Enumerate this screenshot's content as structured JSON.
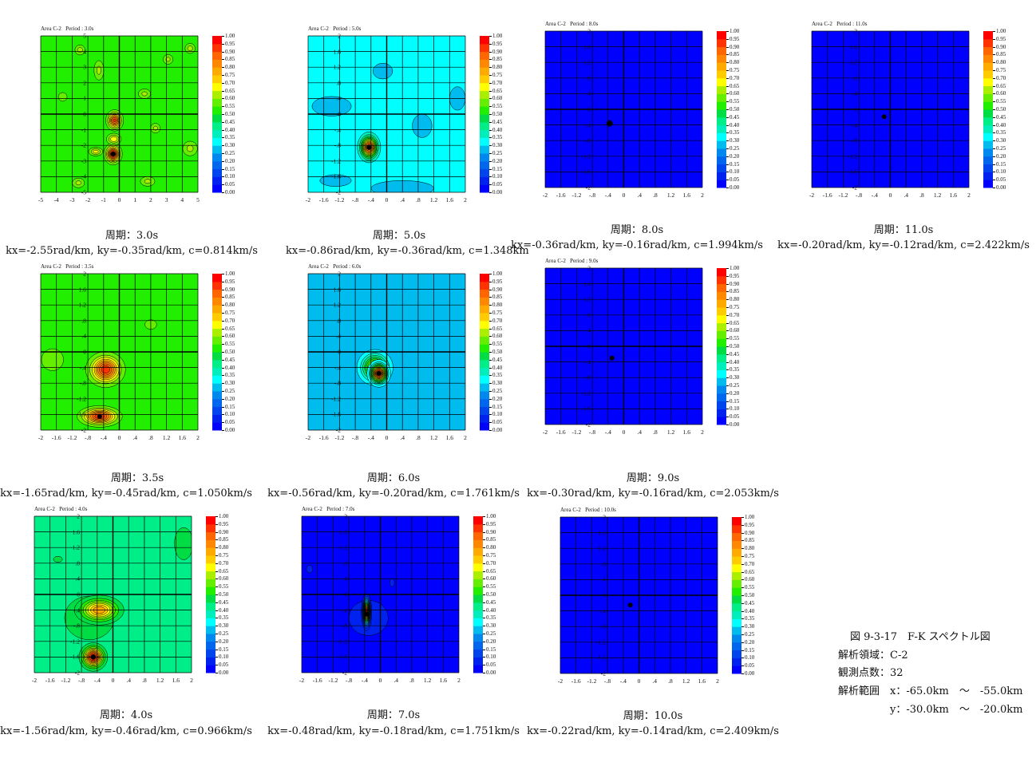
{
  "colormap": [
    "#0000ff",
    "#0022ee",
    "#0044ee",
    "#0066ee",
    "#0088ee",
    "#00bbee",
    "#00ffff",
    "#00eebb",
    "#00ee88",
    "#00dd44",
    "#22ee00",
    "#66ee00",
    "#aaee00",
    "#ffff00",
    "#ffcc00",
    "#ffaa00",
    "#ff8800",
    "#ff6600",
    "#ff3300",
    "#ff0000"
  ],
  "colorbar_labels": [
    "1.00",
    "0.95",
    "0.90",
    "0.85",
    "0.80",
    "0.75",
    "0.70",
    "0.65",
    "0.60",
    "0.55",
    "0.50",
    "0.45",
    "0.40",
    "0.35",
    "0.30",
    "0.25",
    "0.20",
    "0.15",
    "0.10",
    "0.05",
    "0.00"
  ],
  "ticks_small": [
    "2",
    "1.6",
    "1.2",
    ".8",
    ".4",
    "0",
    "-.4",
    "-.8",
    "-1.2",
    "-1.6",
    "-2"
  ],
  "ticks_small_x": [
    "-2",
    "-1.6",
    "-1.2",
    "-.8",
    "-.4",
    "0",
    ".4",
    ".8",
    "1.2",
    "1.6",
    "2"
  ],
  "ticks_large": [
    "5",
    "4",
    "3",
    "2",
    "1",
    "0",
    "-1",
    "-2",
    "-3",
    "-4",
    "-5"
  ],
  "ticks_large_x": [
    "-5",
    "-4",
    "-3",
    "-2",
    "-1",
    "0",
    "1",
    "2",
    "3",
    "4",
    "5"
  ],
  "chart_data": [
    {
      "type": "heatmap",
      "title": "Area C-2   Period : 3.0s",
      "period": "周期：3.0s",
      "result": "kx=-2.55rad/km, ky=-0.35rad/km, c=0.814km/s",
      "range": 5,
      "bg": 0.52,
      "peaks": [
        {
          "kx": -0.3,
          "ky": -0.4,
          "amp": 0.92,
          "sx": 0.25,
          "sy": 0.3
        },
        {
          "kx": -0.4,
          "ky": -2.55,
          "amp": 1.0,
          "sx": 0.25,
          "sy": 0.3
        },
        {
          "kx": -0.35,
          "ky": -1.6,
          "amp": 0.7,
          "sx": 0.25,
          "sy": 0.2
        },
        {
          "kx": -1.5,
          "ky": -2.4,
          "amp": 0.68,
          "sx": 0.25,
          "sy": 0.15
        },
        {
          "kx": 2.3,
          "ky": -0.9,
          "amp": 0.62,
          "sx": 0.2,
          "sy": 0.2
        },
        {
          "kx": -2.5,
          "ky": 4.1,
          "amp": 0.63,
          "sx": 0.2,
          "sy": 0.2
        },
        {
          "kx": -1.3,
          "ky": 2.8,
          "amp": 0.62,
          "sx": 0.2,
          "sy": 0.4
        },
        {
          "kx": 1.6,
          "ky": 1.3,
          "amp": 0.62,
          "sx": 0.25,
          "sy": 0.2
        },
        {
          "kx": 4.5,
          "ky": -2.2,
          "amp": 0.62,
          "sx": 0.3,
          "sy": 0.3
        },
        {
          "kx": 3.1,
          "ky": 3.5,
          "amp": 0.62,
          "sx": 0.2,
          "sy": 0.2
        },
        {
          "kx": -3.6,
          "ky": 1.1,
          "amp": 0.6,
          "sx": 0.2,
          "sy": 0.2
        },
        {
          "kx": -2.6,
          "ky": -4.4,
          "amp": 0.62,
          "sx": 0.25,
          "sy": 0.2
        },
        {
          "kx": 4.5,
          "ky": 4.2,
          "amp": 0.63,
          "sx": 0.2,
          "sy": 0.2
        },
        {
          "kx": 1.8,
          "ky": -4.3,
          "amp": 0.62,
          "sx": 0.3,
          "sy": 0.2
        }
      ],
      "patches": [],
      "dot": [
        -0.4,
        -2.55
      ]
    },
    {
      "type": "heatmap",
      "title": "Area C-2   Period : 5.0s",
      "period": "周期：5.0s",
      "result": "kx=-0.86rad/km, ky=-0.36rad/km, c=1.348km",
      "range": 2,
      "bg": 0.32,
      "clip": true,
      "peaks": [
        {
          "kx": -0.45,
          "ky": -0.85,
          "amp": 0.95,
          "sx": 0.12,
          "sy": 0.16
        }
      ],
      "patches": [
        {
          "kx": -1.4,
          "ky": 0.2,
          "rx": 0.5,
          "ry": 0.25,
          "level": 0.27
        },
        {
          "kx": 0.9,
          "ky": -0.3,
          "rx": 0.25,
          "ry": 0.3,
          "level": 0.27
        },
        {
          "kx": 1.8,
          "ky": 0.4,
          "rx": 0.2,
          "ry": 0.3,
          "level": 0.27
        },
        {
          "kx": -0.1,
          "ky": 1.1,
          "rx": 0.25,
          "ry": 0.2,
          "level": 0.27
        },
        {
          "kx": 0.4,
          "ky": -1.9,
          "rx": 0.8,
          "ry": 0.2,
          "level": 0.27
        },
        {
          "kx": -1.3,
          "ky": -1.7,
          "rx": 0.4,
          "ry": 0.15,
          "level": 0.27
        }
      ],
      "dot": [
        -0.45,
        -0.85
      ]
    },
    {
      "type": "heatmap",
      "title": "Area C-2   Period : 8.0s",
      "period": "周期：8.0s",
      "result": "kx=-0.36rad/km, ky=-0.16rad/km, c=1.994km/s",
      "range": 2,
      "bg": 0.02,
      "peaks": [
        {
          "kx": -0.36,
          "ky": -0.36,
          "amp": 1.0,
          "sx": 0.03,
          "sy": 0.03
        }
      ],
      "patches": [],
      "dot": [
        -0.36,
        -0.36
      ]
    },
    {
      "type": "heatmap",
      "title": "Area C-2   Period : 11.0s",
      "period": "周期：11.0s",
      "result": "kx=-0.20rad/km, ky=-0.12rad/km, c=2.422km/s",
      "range": 2,
      "bg": 0.02,
      "peaks": [],
      "patches": [],
      "dot": [
        -0.16,
        -0.19
      ]
    },
    {
      "type": "heatmap",
      "title": "Area C-2   Period : 3.5s",
      "period": "周期：3.5s",
      "result": "kx=-1.65rad/km, ky=-0.45rad/km, c=1.050km/s",
      "range": 2,
      "bg": 0.52,
      "peaks": [
        {
          "kx": -0.35,
          "ky": -0.45,
          "amp": 0.95,
          "sx": 0.22,
          "sy": 0.2
        },
        {
          "kx": -0.5,
          "ky": -1.65,
          "amp": 0.95,
          "sx": 0.25,
          "sy": 0.12
        },
        {
          "kx": -1.7,
          "ky": -0.2,
          "amp": 0.6,
          "sx": 0.2,
          "sy": 0.2
        },
        {
          "kx": 0.8,
          "ky": 0.7,
          "amp": 0.57,
          "sx": 0.15,
          "sy": 0.12
        }
      ],
      "patches": [],
      "dot": [
        -0.5,
        -1.65
      ]
    },
    {
      "type": "heatmap",
      "title": "Area C-2   Period : 6.0s",
      "period": "周期：6.0s",
      "result": "kx=-0.56rad/km, ky=-0.20rad/km, c=1.761km/s",
      "range": 2,
      "bg": 0.27,
      "clip": true,
      "peaks": [
        {
          "kx": -0.3,
          "ky": -0.4,
          "amp": 0.7,
          "sx": 0.2,
          "sy": 0.2
        },
        {
          "kx": -0.2,
          "ky": -0.55,
          "amp": 1.0,
          "sx": 0.12,
          "sy": 0.14
        }
      ],
      "patches": [],
      "dot": [
        -0.2,
        -0.55
      ]
    },
    {
      "type": "heatmap",
      "title": "Area C-2   Period : 9.0s",
      "period": "周期：9.0s",
      "result": "kx=-0.30rad/km, ky=-0.16rad/km, c=2.053km/s",
      "range": 2,
      "bg": 0.02,
      "peaks": [],
      "patches": [],
      "dot": [
        -0.3,
        -0.3
      ]
    },
    {
      "type": "heatmap",
      "title": "Area C-2   Period : 4.0s",
      "period": "周期：4.0s",
      "result": "kx=-1.56rad/km, ky=-0.46rad/km, c=0.966km/s",
      "range": 2,
      "bg": 0.42,
      "peaks": [
        {
          "kx": -0.6,
          "ky": -0.6,
          "amp": 0.5,
          "sx": 0.45,
          "sy": 0.4
        },
        {
          "kx": -0.35,
          "ky": -0.4,
          "amp": 0.8,
          "sx": 0.28,
          "sy": 0.17
        },
        {
          "kx": -0.5,
          "ky": -1.6,
          "amp": 1.0,
          "sx": 0.15,
          "sy": 0.15
        },
        {
          "kx": 1.8,
          "ky": 1.3,
          "amp": 0.48,
          "sx": 0.2,
          "sy": 0.35
        },
        {
          "kx": -1.4,
          "ky": 0.9,
          "amp": 0.46,
          "sx": 0.15,
          "sy": 0.1
        }
      ],
      "patches": [],
      "dot": [
        -0.5,
        -1.6
      ]
    },
    {
      "type": "heatmap",
      "title": "Area C-2   Period : 7.0s",
      "period": "周期：7.0s",
      "result": "kx=-0.48rad/km, ky=-0.18rad/km, c=1.751km/s",
      "range": 2,
      "bg": 0.02,
      "peaks": [
        {
          "kx": -0.35,
          "ky": -0.45,
          "amp": 1.0,
          "sx": 0.05,
          "sy": 0.18
        }
      ],
      "patches": [
        {
          "kx": -0.3,
          "ky": -0.6,
          "rx": 0.5,
          "ry": 0.45,
          "level": 0.07
        },
        {
          "kx": -1.8,
          "ky": 0.65,
          "rx": 0.08,
          "ry": 0.1,
          "level": 0.07
        },
        {
          "kx": 0.3,
          "ky": 0.3,
          "rx": 0.06,
          "ry": 0.1,
          "level": 0.07
        }
      ],
      "dot": [
        -0.35,
        -0.5
      ]
    },
    {
      "type": "heatmap",
      "title": "Area C-2   Period : 10.0s",
      "period": "周期：10.0s",
      "result": "kx=-0.22rad/km, ky=-0.14rad/km, c=2.409km/s",
      "range": 2,
      "bg": 0.02,
      "peaks": [],
      "patches": [],
      "dot": [
        -0.22,
        -0.25
      ]
    }
  ],
  "figure": {
    "caption": "図 9-3-17　F-K スペクトル図",
    "area": "解析領域：C-2",
    "stations": "観測点数：32",
    "range_x": "解析範囲　x：-65.0km　～　-55.0km",
    "range_y": "y：-30.0km　～　-20.0km"
  }
}
